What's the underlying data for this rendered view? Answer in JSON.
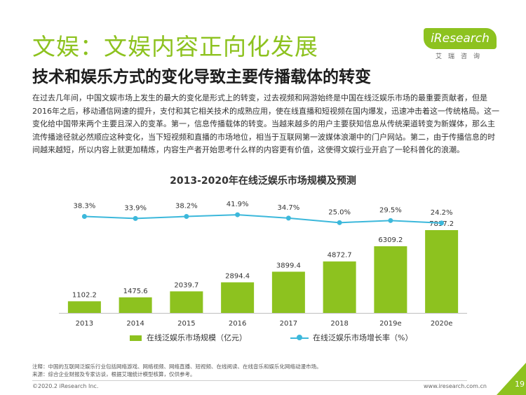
{
  "header": {
    "title": "文娱：文娱内容正向化发展",
    "subtitle": "技术和娱乐方式的变化导致主要传播载体的转变"
  },
  "logo": {
    "name": "iResearch",
    "tagline": "艾瑞咨询",
    "color": "#8dc21f"
  },
  "body": {
    "paragraph": "在过去几年间，中国文娱市场上发生的最大的变化是形式上的转变，过去视频和网游始终是中国在线泛娱乐市场的最重要贡献者，但是2016年之后，移动通信网速的提升，支付和其它相关技术的成熟应用，使在线直播和短视频在国内爆发，迅速冲击着这一传统格局。这一变化给中国带来两个主要且深入的变革。第一，信息传播载体的转变。当越来越多的用户主要获知信息从传统渠道转变为新媒体，那么主流传播途径就必然顺应这种变化，当下短视频和直播的市场地位，相当于互联网第一波媒体浪潮中的门户网站。第二，由于传播信息的时间越来越短，所以内容上就更加精炼，内容生产者开始思考什么样的内容更有价值，这使得文娱行业开启了一轮科普化的浪潮。"
  },
  "chart_data": {
    "type": "bar",
    "title": "2013-2020年在线泛娱乐市场规模及预测",
    "categories": [
      "2013",
      "2014",
      "2015",
      "2016",
      "2017",
      "2018",
      "2019e",
      "2020e"
    ],
    "series": [
      {
        "name": "在线泛娱乐市场规模（亿元）",
        "type": "bar",
        "values": [
          1102.2,
          1475.6,
          2039.7,
          2894.4,
          3899.4,
          4872.7,
          6309.2,
          7837.2
        ],
        "labels": [
          "1102.2",
          "1475.6",
          "2039.7",
          "2894.4",
          "3899.4",
          "4872.7",
          "6309.2",
          "7837.2"
        ],
        "color": "#8dc21f"
      },
      {
        "name": "在线泛娱乐市场增长率（%）",
        "type": "line",
        "values": [
          38.3,
          33.9,
          38.2,
          41.9,
          34.7,
          25.0,
          29.5,
          24.2
        ],
        "labels": [
          "38.3%",
          "33.9%",
          "38.2%",
          "41.9%",
          "34.7%",
          "25.0%",
          "29.5%",
          "24.2%"
        ],
        "color": "#3cb8db"
      }
    ],
    "ylim": [
      0,
      8500
    ],
    "y2lim": [
      0,
      60
    ],
    "grid": false,
    "legend": "bottom"
  },
  "footer": {
    "note": "注释：中国的互联网泛娱乐行业包括网络游戏、网络视频、网络直播、短视频、在线阅读、在线音乐和娱乐化网络动漫市场。",
    "source": "来源：综合企业财报及专家访谈，根据艾瑞统计模型核算，仅供参考。",
    "copyright": "©2020.2 iResearch Inc.",
    "website": "www.iresearch.com.cn",
    "page": "19"
  }
}
